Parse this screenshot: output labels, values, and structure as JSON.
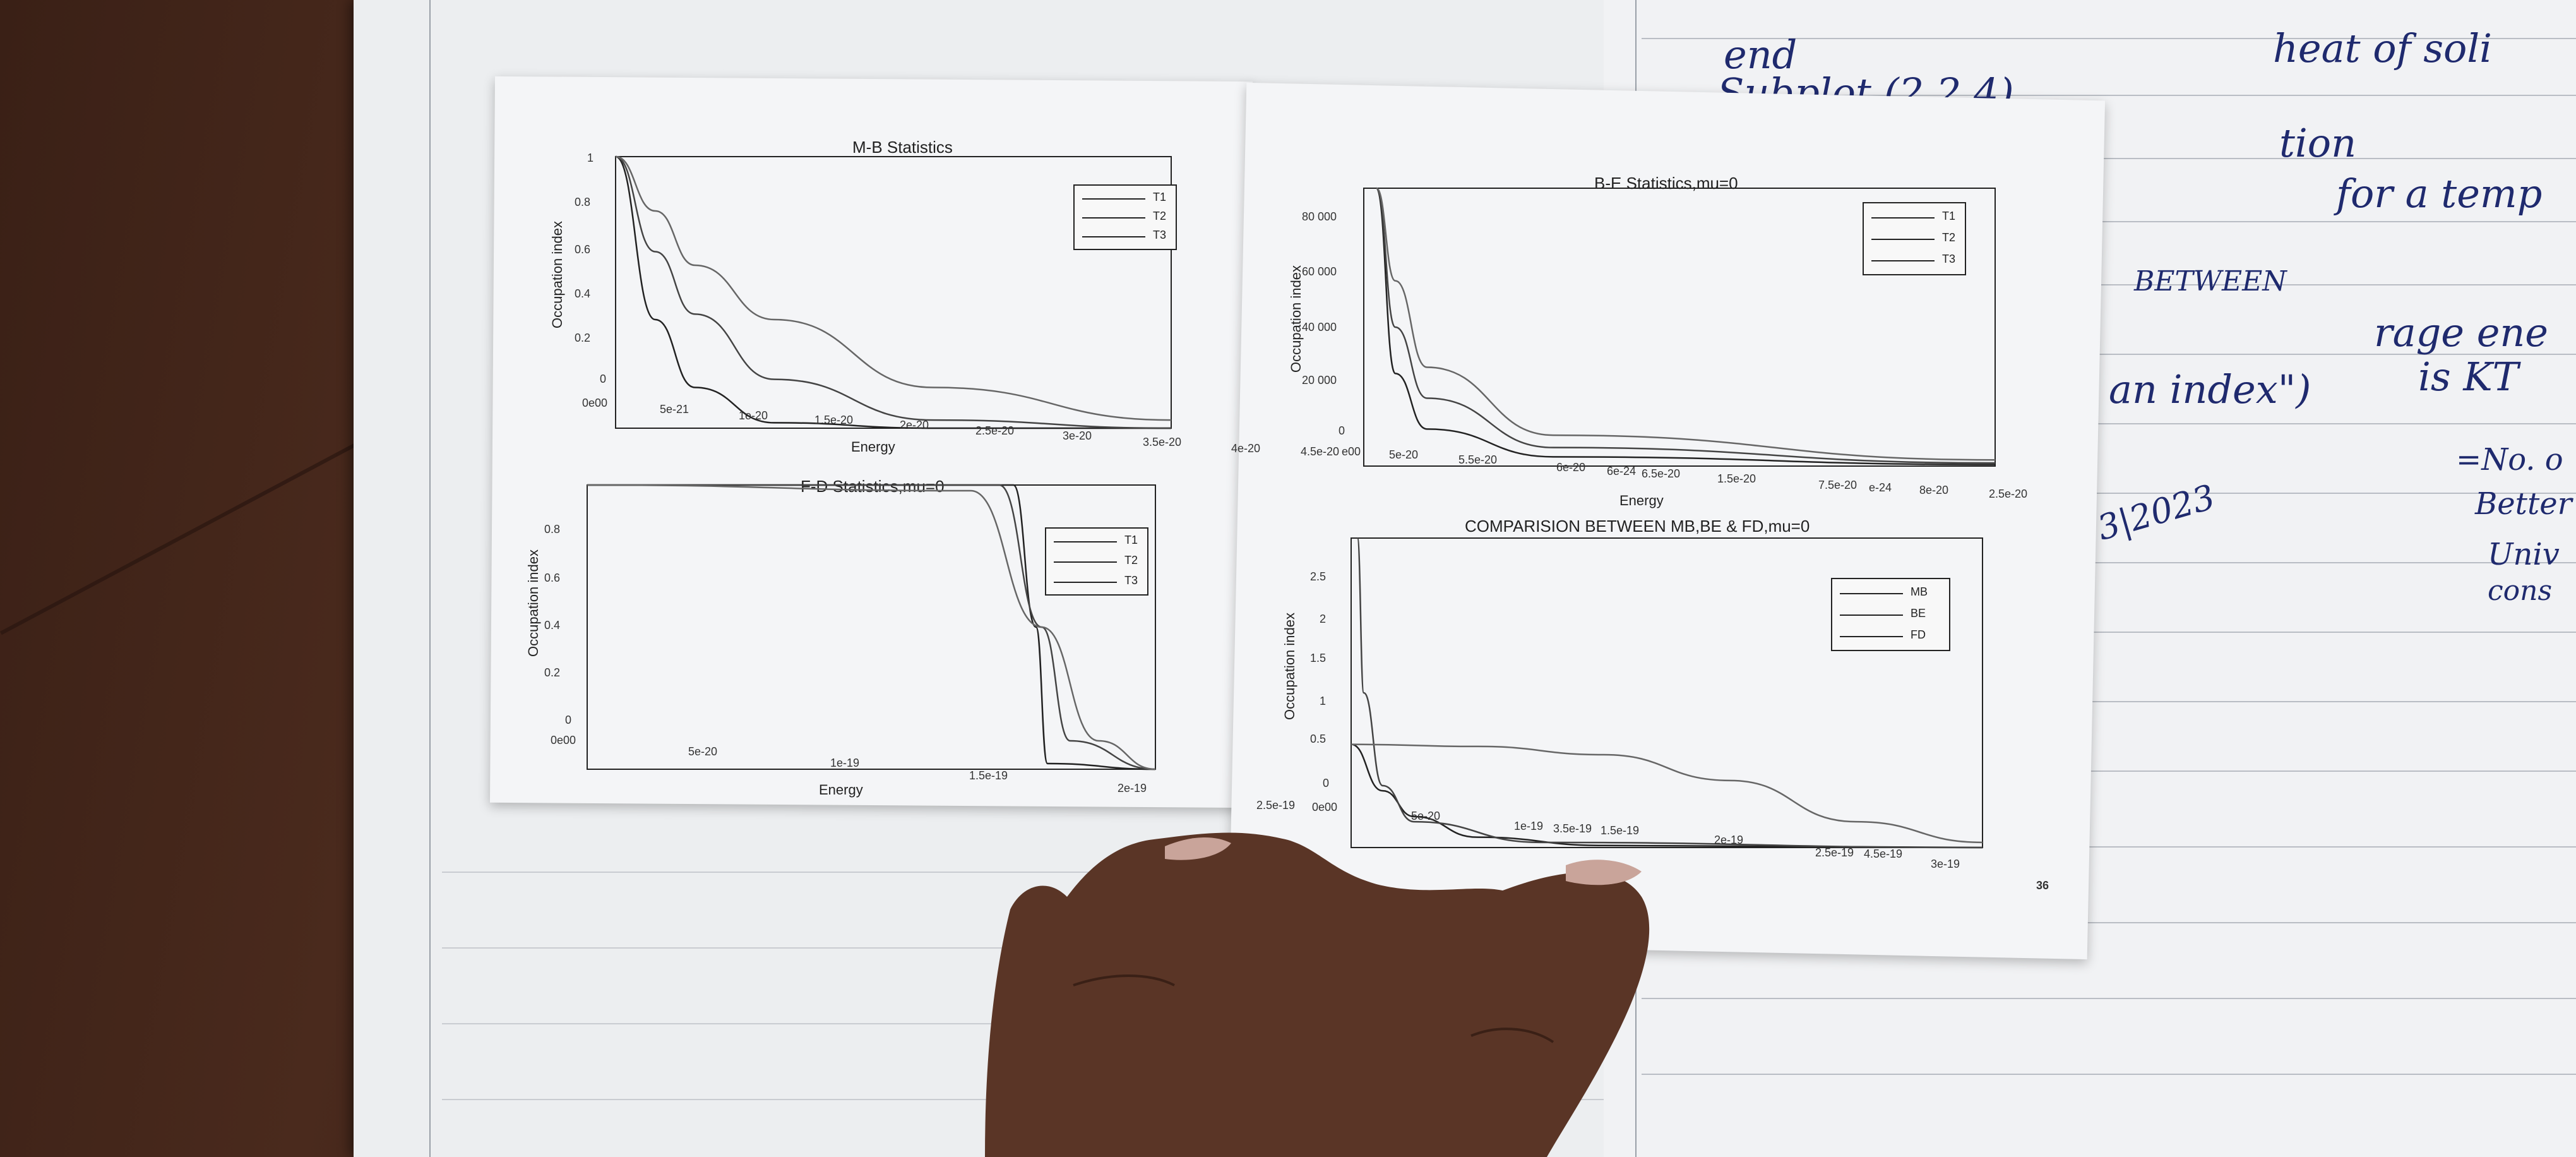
{
  "plots": {
    "mb": {
      "title": "M-B Statistics",
      "xlabel": "Energy",
      "ylabel": "Occupation index",
      "xticks": [
        "0e00",
        "5e-21",
        "1e-20",
        "1.5e-20",
        "2e-20",
        "2.5e-20",
        "3e-20",
        "3.5e-20",
        "4e-20"
      ],
      "yticks": [
        "0",
        "0.2",
        "0.4",
        "0.6",
        "0.8",
        "1"
      ],
      "legend": [
        "T1",
        "T2",
        "T3"
      ]
    },
    "be": {
      "title": "B-E Statistics,mu=0",
      "xlabel": "Energy",
      "ylabel": "Occupation index",
      "xticks": [
        "4.5e-20",
        "e00",
        "5e-20",
        "5.5e-20",
        "6e-20",
        "6e-24",
        "6.5e-20",
        "1.5e-20",
        "7.5e-20",
        "e-24",
        "8e-20",
        "2.5e-20"
      ],
      "yticks": [
        "0",
        "20 000",
        "40 000",
        "60 000",
        "80 000"
      ],
      "legend": [
        "T1",
        "T2",
        "T3"
      ]
    },
    "fd": {
      "title": "F-D Statistics,mu=0",
      "xlabel": "Energy",
      "ylabel": "Occupation index",
      "xticks": [
        "0e00",
        "5e-20",
        "1e-19",
        "1.5e-19",
        "2e-19"
      ],
      "yticks": [
        "0",
        "0.2",
        "0.4",
        "0.6",
        "0.8"
      ],
      "legend": [
        "T1",
        "T2",
        "T3"
      ]
    },
    "cmp": {
      "title": "COMPARISION BETWEEN MB,BE & FD,mu=0",
      "ylabel": "Occupation index",
      "xticks": [
        "2.5e-19",
        "0e00",
        "5e-20",
        "1e-19",
        "3.5e-19",
        "1.5e-19",
        "2e-19",
        "2.5e-19",
        "4.5e-19",
        "3e-19"
      ],
      "yticks": [
        "0",
        "0.5",
        "1",
        "1.5",
        "2",
        "2.5"
      ],
      "legend": [
        "MB",
        "BE",
        "FD"
      ],
      "page_number": "36"
    }
  },
  "handwriting": {
    "right": [
      "end",
      "Subplot (2,2,4)",
      "heat of soli",
      "tion",
      "for a temp",
      "rage ene",
      "is KT",
      "an index\")",
      "BETWEEN",
      "=No. o",
      "Better",
      "Univ",
      "cons",
      "3|2023"
    ]
  },
  "chart_data": [
    {
      "type": "line",
      "title": "M-B Statistics",
      "xlabel": "Energy",
      "ylabel": "Occupation index",
      "xlim": [
        0,
        3.5e-20
      ],
      "ylim": [
        0,
        1
      ],
      "series": [
        {
          "name": "T1",
          "x": [
            0,
            2.5e-21,
            5e-21,
            1e-20,
            2e-20,
            3.5e-20
          ],
          "y": [
            1,
            0.4,
            0.15,
            0.02,
            0.0,
            0.0
          ]
        },
        {
          "name": "T2",
          "x": [
            0,
            2.5e-21,
            5e-21,
            1e-20,
            2e-20,
            3.5e-20
          ],
          "y": [
            1,
            0.65,
            0.42,
            0.18,
            0.03,
            0.0
          ]
        },
        {
          "name": "T3",
          "x": [
            0,
            2.5e-21,
            5e-21,
            1e-20,
            2e-20,
            3.5e-20
          ],
          "y": [
            1,
            0.8,
            0.6,
            0.4,
            0.15,
            0.03
          ]
        }
      ],
      "legend_position": "top-right"
    },
    {
      "type": "line",
      "title": "B-E Statistics,mu=0",
      "xlabel": "Energy",
      "ylabel": "Occupation index",
      "ylim": [
        0,
        90000
      ],
      "series": [
        {
          "name": "T1",
          "x": [
            0.02,
            0.05,
            0.1,
            0.3,
            1.0
          ],
          "y": [
            90000,
            30000,
            12000,
            3000,
            500
          ]
        },
        {
          "name": "T2",
          "x": [
            0.02,
            0.05,
            0.1,
            0.3,
            1.0
          ],
          "y": [
            90000,
            45000,
            22000,
            6000,
            1000
          ]
        },
        {
          "name": "T3",
          "x": [
            0.02,
            0.05,
            0.1,
            0.3,
            1.0
          ],
          "y": [
            90000,
            60000,
            32000,
            10000,
            2000
          ]
        }
      ],
      "legend_position": "top-right"
    },
    {
      "type": "line",
      "title": "F-D Statistics,mu=0",
      "xlabel": "Energy",
      "ylabel": "Occupation index",
      "xlim": [
        0,
        2e-19
      ],
      "ylim": [
        0,
        1
      ],
      "series": [
        {
          "name": "T1",
          "x": [
            0,
            1.5e-19,
            1.58e-19,
            1.62e-19,
            2e-19
          ],
          "y": [
            1,
            1,
            0.5,
            0.02,
            0
          ]
        },
        {
          "name": "T2",
          "x": [
            0,
            1.45e-19,
            1.6e-19,
            1.7e-19,
            2e-19
          ],
          "y": [
            1,
            1,
            0.5,
            0.1,
            0
          ]
        },
        {
          "name": "T3",
          "x": [
            0,
            1.35e-19,
            1.6e-19,
            1.8e-19,
            2e-19
          ],
          "y": [
            1,
            0.98,
            0.5,
            0.1,
            0
          ]
        }
      ],
      "legend_position": "top-right"
    },
    {
      "type": "line",
      "title": "COMPARISION BETWEEN MB,BE & FD,mu=0",
      "ylabel": "Occupation index",
      "ylim": [
        0,
        3
      ],
      "series": [
        {
          "name": "MB",
          "x": [
            0,
            0.05,
            0.1,
            0.2,
            0.4,
            1.0
          ],
          "y": [
            1,
            0.55,
            0.3,
            0.1,
            0.02,
            0
          ]
        },
        {
          "name": "BE",
          "x": [
            0.01,
            0.02,
            0.05,
            0.1,
            0.3,
            1.0
          ],
          "y": [
            3,
            1.5,
            0.6,
            0.25,
            0.05,
            0
          ]
        },
        {
          "name": "FD",
          "x": [
            0,
            0.2,
            0.4,
            0.6,
            0.8,
            1.0
          ],
          "y": [
            1,
            0.98,
            0.9,
            0.65,
            0.25,
            0.05
          ]
        }
      ],
      "legend_position": "top-right"
    }
  ]
}
